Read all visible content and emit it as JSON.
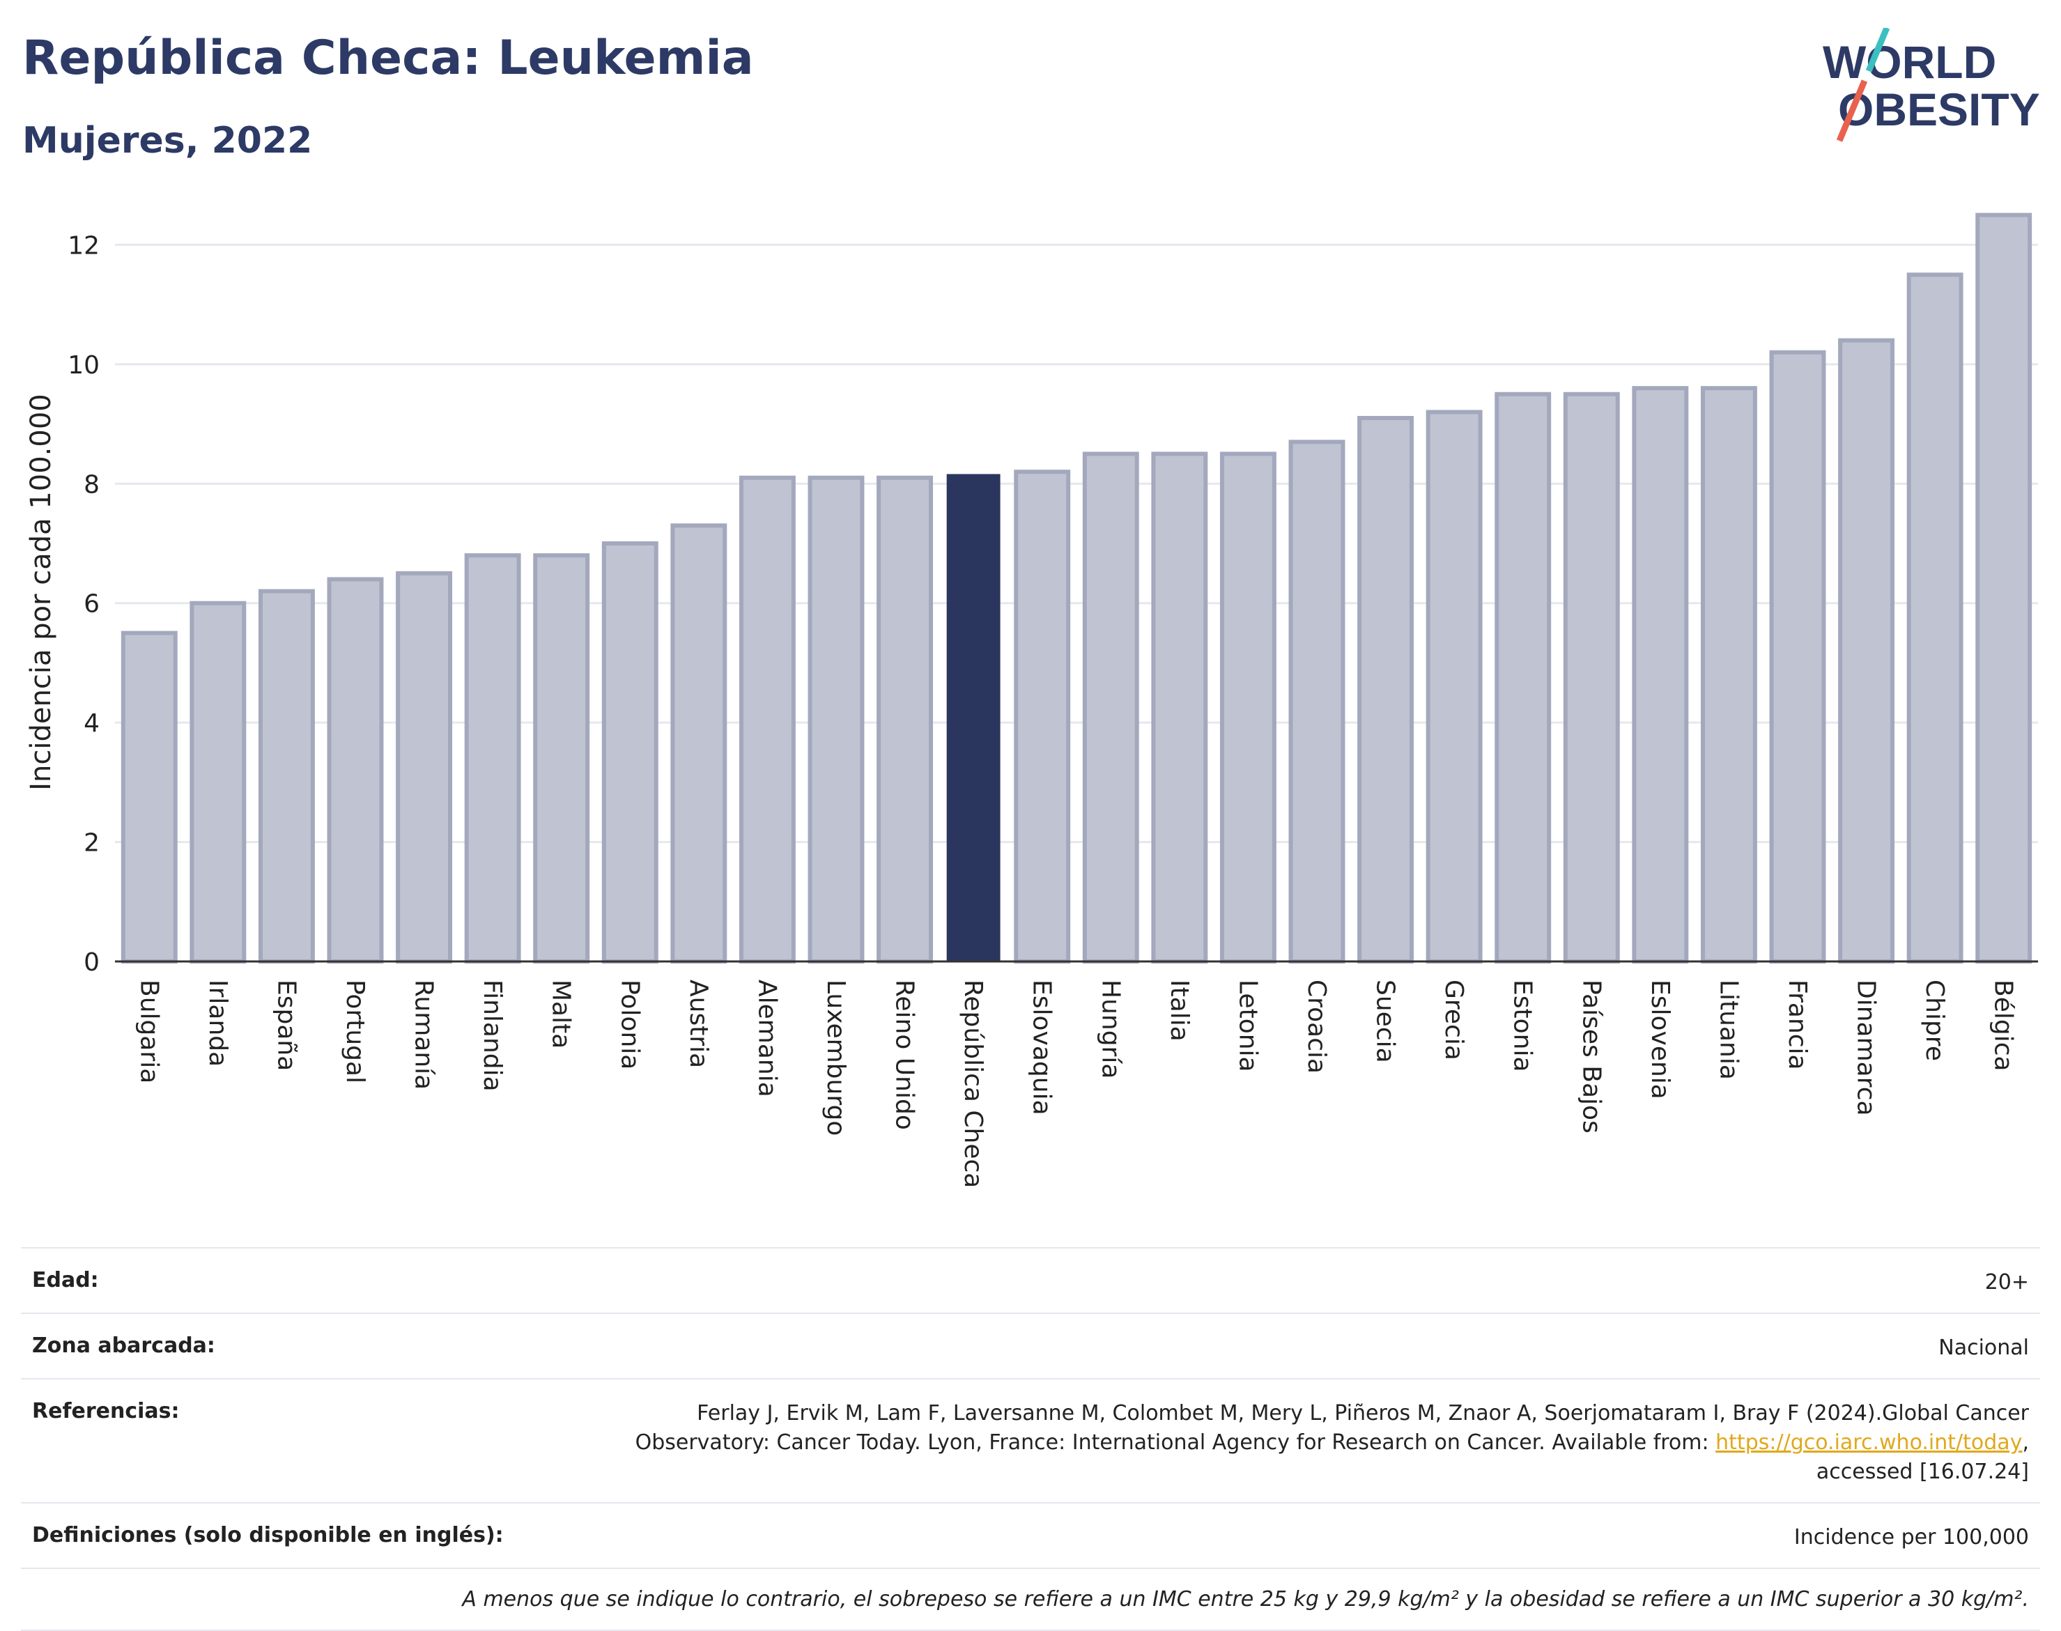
{
  "header": {
    "title": "República Checa: Leukemia",
    "subtitle": "Mujeres, 2022"
  },
  "logo": {
    "line1": "WORLD",
    "line2": "OBESITY"
  },
  "colors": {
    "bar": "#c0c3d1",
    "bar_edge": "#a3a8bd",
    "highlight": "#2b365f",
    "text": "#2d3a66",
    "grid": "#e6e8ef",
    "logo_teal": "#3bbfbf",
    "logo_red": "#e8624e"
  },
  "chart_data": {
    "type": "bar",
    "ylabel": "Incidencia por cada 100.000",
    "ylim": [
      0,
      12.6
    ],
    "yticks": [
      0,
      2,
      4,
      6,
      8,
      10,
      12
    ],
    "highlight": "República Checa",
    "grid": true,
    "categories": [
      "Bulgaria",
      "Irlanda",
      "España",
      "Portugal",
      "Rumanía",
      "Finlandia",
      "Malta",
      "Polonia",
      "Austria",
      "Alemania",
      "Luxemburgo",
      "Reino Unido",
      "República Checa",
      "Eslovaquia",
      "Hungría",
      "Italia",
      "Letonia",
      "Croacia",
      "Suecia",
      "Grecia",
      "Estonia",
      "Países Bajos",
      "Eslovenia",
      "Lituania",
      "Francia",
      "Dinamarca",
      "Chipre",
      "Bélgica"
    ],
    "values": [
      5.5,
      6.0,
      6.2,
      6.4,
      6.5,
      6.8,
      6.8,
      7.0,
      7.3,
      8.1,
      8.1,
      8.1,
      8.15,
      8.2,
      8.5,
      8.5,
      8.5,
      8.7,
      9.1,
      9.2,
      9.5,
      9.5,
      9.6,
      9.6,
      10.2,
      10.4,
      11.5,
      12.5
    ]
  },
  "footer": {
    "age_label": "Edad:",
    "age_value": "20+",
    "area_label": "Zona abarcada:",
    "area_value": "Nacional",
    "refs_label": "Referencias:",
    "refs_line1": "Ferlay J, Ervik M, Lam F, Laversanne M, Colombet M, Mery L, Piñeros M, Znaor A, Soerjomataram I, Bray F (2024).Global Cancer",
    "refs_line2a": "Observatory: Cancer Today. Lyon, France: International Agency for Research on Cancer. Available from: ",
    "refs_link": "https://gco.iarc.who.int/today",
    "refs_line2b": ",",
    "refs_line3": "accessed [16.07.24]",
    "defs_label": "Definiciones (solo disponible en inglés):",
    "defs_value": "Incidence per 100,000",
    "note": "A menos que se indique lo contrario, el sobrepeso se refiere a un IMC entre 25 kg y 29,9 kg/m² y la obesidad se refiere a un IMC superior a 30 kg/m²."
  }
}
